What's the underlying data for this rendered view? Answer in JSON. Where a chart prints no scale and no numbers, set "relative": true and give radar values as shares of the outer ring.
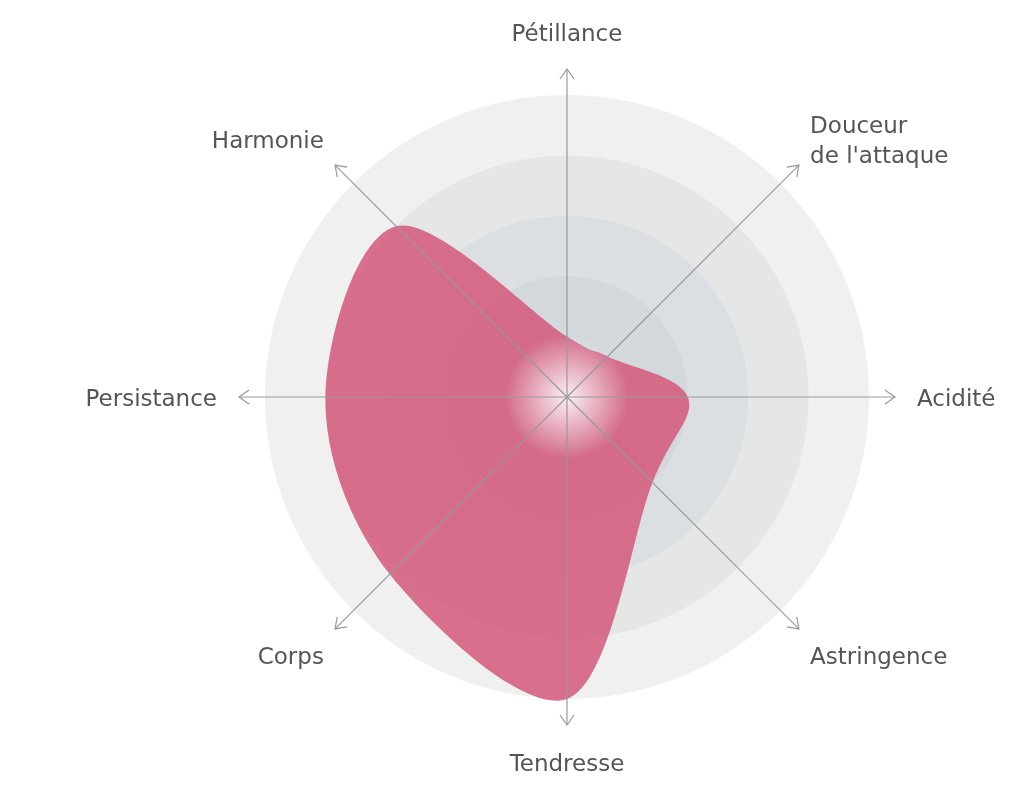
{
  "chart_data": {
    "type": "radar",
    "relative": true,
    "grid": true,
    "categories": [
      "Pétillance",
      "Douceur\nde l'attaque",
      "Acidité",
      "Astringence",
      "Tendresse",
      "Corps",
      "Persistance",
      "Harmonie"
    ],
    "series": [
      {
        "color": "#d4587a",
        "values": [
          0.2,
          0.19,
          0.4,
          0.4,
          1.0,
          0.83,
          0.8,
          0.8
        ]
      }
    ]
  }
}
